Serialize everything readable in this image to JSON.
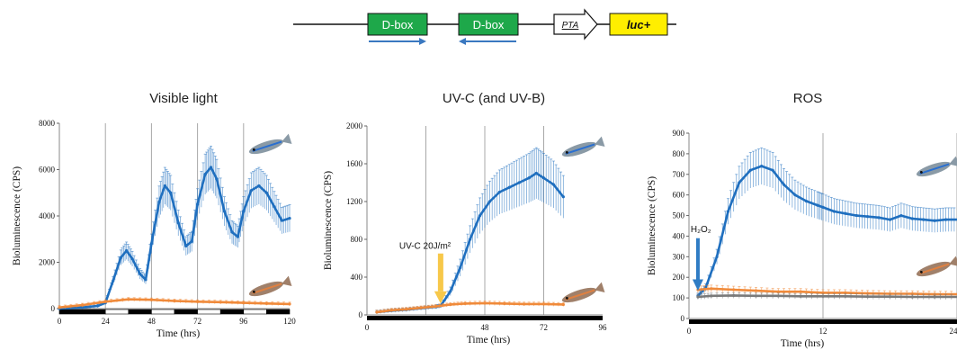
{
  "construct": {
    "box1": "D-box",
    "box2": "D-box",
    "promoter": "PTA",
    "reporter": "luc+",
    "colors": {
      "dbox": "#1ea84a",
      "luc": "#ffee00",
      "arrow": "#3a78c0"
    }
  },
  "chart_data": [
    {
      "type": "line",
      "title": "Visible light",
      "xlabel": "Time (hrs)",
      "ylabel": "Bioluminescence (CPS)",
      "xlim": [
        0,
        120
      ],
      "ylim": [
        0,
        8000
      ],
      "xticks": [
        "0",
        "24",
        "48",
        "72",
        "96",
        "120"
      ],
      "yticks": [
        "0",
        "2000",
        "4000",
        "6000",
        "8000"
      ],
      "xtick_values": [
        0,
        24,
        48,
        72,
        96,
        120
      ],
      "ytick_values": [
        0,
        2000,
        4000,
        6000,
        8000
      ],
      "vlines": [
        24,
        48,
        72,
        96
      ],
      "light_dark_bar": [
        [
          0,
          24,
          "dark"
        ],
        [
          24,
          36,
          "light"
        ],
        [
          36,
          48,
          "dark"
        ],
        [
          48,
          60,
          "light"
        ],
        [
          60,
          72,
          "dark"
        ],
        [
          72,
          84,
          "light"
        ],
        [
          84,
          96,
          "dark"
        ],
        [
          96,
          108,
          "light"
        ],
        [
          108,
          120,
          "dark"
        ]
      ],
      "series": [
        {
          "color": "#1f6fbf",
          "points": [
            [
              0,
              0
            ],
            [
              12,
              50
            ],
            [
              20,
              120
            ],
            [
              24,
              250
            ],
            [
              28,
              1200
            ],
            [
              32,
              2200
            ],
            [
              35,
              2500
            ],
            [
              38,
              2150
            ],
            [
              42,
              1500
            ],
            [
              45,
              1250
            ],
            [
              48,
              2800
            ],
            [
              52,
              4600
            ],
            [
              55,
              5300
            ],
            [
              58,
              5000
            ],
            [
              62,
              3700
            ],
            [
              66,
              2700
            ],
            [
              69,
              2900
            ],
            [
              72,
              4500
            ],
            [
              76,
              5800
            ],
            [
              79,
              6100
            ],
            [
              82,
              5600
            ],
            [
              86,
              4200
            ],
            [
              90,
              3300
            ],
            [
              93,
              3100
            ],
            [
              96,
              4200
            ],
            [
              100,
              5100
            ],
            [
              104,
              5300
            ],
            [
              108,
              5000
            ],
            [
              112,
              4400
            ],
            [
              116,
              3800
            ],
            [
              120,
              3900
            ]
          ]
        },
        {
          "color": "#f08a3a",
          "points": [
            [
              0,
              50
            ],
            [
              12,
              150
            ],
            [
              24,
              300
            ],
            [
              36,
              400
            ],
            [
              48,
              380
            ],
            [
              60,
              330
            ],
            [
              72,
              300
            ],
            [
              84,
              280
            ],
            [
              96,
              250
            ],
            [
              108,
              220
            ],
            [
              120,
              200
            ]
          ]
        }
      ],
      "error_fraction": 0.15
    },
    {
      "type": "line",
      "title": "UV-C (and UV-B)",
      "xlabel": "Time (hrs)",
      "ylabel": "Bioluminescence (CPS)",
      "xlim": [
        0,
        96
      ],
      "ylim": [
        0,
        2000
      ],
      "xticks": [
        "0",
        "48",
        "72",
        "96"
      ],
      "yticks": [
        "0",
        "400",
        "800",
        "1200",
        "1600",
        "2000"
      ],
      "xtick_values": [
        0,
        48,
        72,
        96
      ],
      "ytick_values": [
        0,
        400,
        800,
        1200,
        1600,
        2000
      ],
      "vlines": [
        24,
        48,
        72
      ],
      "annotation": "UV-C 20J/m²",
      "annotation_x": 30,
      "series": [
        {
          "color": "#1f6fbf",
          "points": [
            [
              4,
              30
            ],
            [
              10,
              45
            ],
            [
              16,
              55
            ],
            [
              22,
              70
            ],
            [
              28,
              85
            ],
            [
              30,
              95
            ],
            [
              34,
              250
            ],
            [
              38,
              500
            ],
            [
              42,
              800
            ],
            [
              46,
              1050
            ],
            [
              50,
              1200
            ],
            [
              54,
              1300
            ],
            [
              58,
              1350
            ],
            [
              62,
              1400
            ],
            [
              66,
              1450
            ],
            [
              69,
              1500
            ],
            [
              72,
              1450
            ],
            [
              76,
              1380
            ],
            [
              80,
              1250
            ]
          ]
        },
        {
          "color": "#f08a3a",
          "points": [
            [
              4,
              30
            ],
            [
              10,
              50
            ],
            [
              16,
              60
            ],
            [
              22,
              75
            ],
            [
              28,
              90
            ],
            [
              34,
              110
            ],
            [
              40,
              120
            ],
            [
              48,
              125
            ],
            [
              56,
              120
            ],
            [
              64,
              115
            ],
            [
              72,
              115
            ],
            [
              80,
              110
            ]
          ]
        }
      ],
      "error_fraction": 0.18
    },
    {
      "type": "line",
      "title": "ROS",
      "xlabel": "Time (hrs)",
      "ylabel": "Bioluminescence (CPS)",
      "xlim": [
        0,
        24
      ],
      "ylim": [
        0,
        900
      ],
      "xticks": [
        "0",
        "12",
        "24"
      ],
      "yticks": [
        "0",
        "100",
        "200",
        "300",
        "400",
        "500",
        "600",
        "700",
        "800",
        "900"
      ],
      "xtick_values": [
        0,
        12,
        24
      ],
      "ytick_values": [
        0,
        100,
        200,
        300,
        400,
        500,
        600,
        700,
        800,
        900
      ],
      "vlines": [
        12,
        24
      ],
      "annotation": "H₂O₂",
      "annotation_x": 0.8,
      "series": [
        {
          "color": "#1f6fbf",
          "points": [
            [
              0.8,
              110
            ],
            [
              1.5,
              150
            ],
            [
              2.5,
              300
            ],
            [
              3.5,
              520
            ],
            [
              4.5,
              660
            ],
            [
              5.5,
              720
            ],
            [
              6.5,
              740
            ],
            [
              7.5,
              720
            ],
            [
              8.5,
              650
            ],
            [
              9.5,
              600
            ],
            [
              10.5,
              570
            ],
            [
              11.5,
              550
            ],
            [
              12,
              540
            ],
            [
              13,
              520
            ],
            [
              14,
              510
            ],
            [
              15,
              500
            ],
            [
              16,
              495
            ],
            [
              17,
              490
            ],
            [
              18,
              480
            ],
            [
              19,
              500
            ],
            [
              20,
              485
            ],
            [
              21,
              480
            ],
            [
              22,
              475
            ],
            [
              23,
              480
            ],
            [
              24,
              480
            ]
          ]
        },
        {
          "color": "#f08a3a",
          "points": [
            [
              0.8,
              140
            ],
            [
              2,
              145
            ],
            [
              4,
              140
            ],
            [
              6,
              135
            ],
            [
              8,
              130
            ],
            [
              10,
              130
            ],
            [
              12,
              125
            ],
            [
              14,
              125
            ],
            [
              16,
              122
            ],
            [
              18,
              120
            ],
            [
              20,
              120
            ],
            [
              22,
              118
            ],
            [
              24,
              118
            ]
          ]
        },
        {
          "color": "#7a7a7a",
          "points": [
            [
              0.8,
              105
            ],
            [
              2,
              110
            ],
            [
              4,
              112
            ],
            [
              6,
              110
            ],
            [
              8,
              110
            ],
            [
              10,
              108
            ],
            [
              12,
              108
            ],
            [
              14,
              108
            ],
            [
              16,
              106
            ],
            [
              18,
              106
            ],
            [
              20,
              105
            ],
            [
              22,
              105
            ],
            [
              24,
              105
            ]
          ]
        }
      ],
      "error_fraction": 0.12
    }
  ]
}
